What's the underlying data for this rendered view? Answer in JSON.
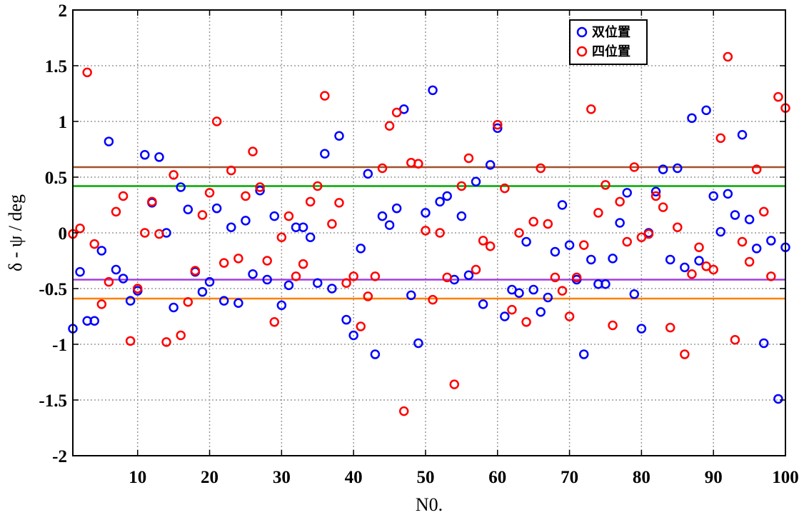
{
  "chart_data": {
    "type": "scatter",
    "title": "",
    "xlabel": "N0.",
    "ylabel": "δ - ψ / deg",
    "xlim": [
      1,
      100
    ],
    "ylim": [
      -2,
      2
    ],
    "x_ticks": [
      "10",
      "20",
      "30",
      "40",
      "50",
      "60",
      "70",
      "80",
      "90",
      "100"
    ],
    "y_ticks": [
      "2",
      "1.5",
      "1",
      "0.5",
      "0",
      "-0.5",
      "-1",
      "-1.5",
      "-2"
    ],
    "grid": true,
    "legend_position": "top-right",
    "x": [
      1,
      2,
      3,
      4,
      5,
      6,
      7,
      8,
      9,
      10,
      11,
      12,
      13,
      14,
      15,
      16,
      17,
      18,
      19,
      20,
      21,
      22,
      23,
      24,
      25,
      26,
      27,
      28,
      29,
      30,
      31,
      32,
      33,
      34,
      35,
      36,
      37,
      38,
      39,
      40,
      41,
      42,
      43,
      44,
      45,
      46,
      47,
      48,
      49,
      50,
      51,
      52,
      53,
      54,
      55,
      56,
      57,
      58,
      59,
      60,
      61,
      62,
      63,
      64,
      65,
      66,
      67,
      68,
      69,
      70,
      71,
      72,
      73,
      74,
      75,
      76,
      77,
      78,
      79,
      80,
      81,
      82,
      83,
      84,
      85,
      86,
      87,
      88,
      89,
      90,
      91,
      92,
      93,
      94,
      95,
      96,
      97,
      98,
      99,
      100
    ],
    "series": [
      {
        "name": "双位置",
        "color": "#0000ff",
        "values": [
          -0.86,
          -0.35,
          -0.79,
          -0.79,
          -0.16,
          0.82,
          -0.33,
          -0.41,
          -0.61,
          -0.52,
          0.7,
          0.27,
          0.68,
          0.0,
          -0.67,
          0.41,
          0.21,
          -0.35,
          -0.53,
          -0.44,
          0.22,
          -0.61,
          0.05,
          -0.63,
          0.11,
          -0.37,
          0.38,
          -0.42,
          0.15,
          -0.65,
          -0.47,
          0.05,
          0.05,
          -0.04,
          -0.45,
          0.71,
          -0.5,
          0.87,
          -0.78,
          -0.92,
          -0.14,
          0.53,
          -1.09,
          0.15,
          0.07,
          0.22,
          1.11,
          -0.56,
          -0.99,
          0.18,
          1.28,
          0.28,
          0.33,
          -0.42,
          0.15,
          -0.38,
          0.46,
          -0.64,
          0.61,
          0.94,
          -0.75,
          -0.51,
          -0.54,
          -0.08,
          -0.51,
          -0.71,
          -0.58,
          -0.17,
          0.25,
          -0.11,
          -0.42,
          -1.09,
          -0.24,
          -0.46,
          -0.46,
          -0.23,
          0.09,
          0.36,
          -0.55,
          -0.86,
          0.0,
          0.37,
          0.57,
          -0.24,
          0.58,
          -0.31,
          1.03,
          -0.25,
          1.1,
          0.33,
          0.01,
          0.35,
          0.16,
          0.88,
          0.12,
          -0.14,
          -0.99,
          -0.07,
          -1.49,
          -0.13
        ]
      },
      {
        "name": "四位置",
        "color": "#ff0000",
        "values": [
          -0.01,
          0.04,
          1.44,
          -0.1,
          -0.64,
          -0.44,
          0.19,
          0.33,
          -0.97,
          -0.5,
          0.0,
          0.28,
          -0.01,
          -0.98,
          0.52,
          -0.92,
          -0.62,
          -0.34,
          0.16,
          0.36,
          1.0,
          -0.27,
          0.56,
          -0.23,
          0.33,
          0.73,
          0.41,
          -0.25,
          -0.8,
          -0.04,
          0.15,
          -0.39,
          -0.28,
          0.28,
          0.42,
          1.23,
          0.08,
          0.27,
          -0.45,
          -0.39,
          -0.84,
          -0.57,
          -0.39,
          0.58,
          0.96,
          1.08,
          -1.6,
          0.63,
          0.62,
          0.02,
          -0.6,
          0.0,
          -0.4,
          -1.36,
          0.42,
          0.67,
          -0.33,
          -0.07,
          -0.12,
          0.97,
          0.4,
          -0.69,
          0.0,
          -0.8,
          0.1,
          0.58,
          0.08,
          -0.4,
          -0.52,
          -0.75,
          -0.4,
          -0.11,
          1.11,
          0.18,
          0.43,
          -0.83,
          0.28,
          -0.08,
          0.59,
          -0.04,
          -0.01,
          0.33,
          0.23,
          -0.85,
          0.05,
          -1.09,
          -0.37,
          -0.13,
          -0.3,
          -0.33,
          0.85,
          1.58,
          -0.96,
          -0.08,
          -0.26,
          0.57,
          0.19,
          -0.39,
          1.22,
          1.12
        ]
      }
    ],
    "reference_lines": [
      {
        "y": 0.59,
        "color": "#a0522d"
      },
      {
        "y": 0.42,
        "color": "#00aa00"
      },
      {
        "y": -0.42,
        "color": "#a040e0"
      },
      {
        "y": -0.59,
        "color": "#ff8000"
      }
    ]
  }
}
